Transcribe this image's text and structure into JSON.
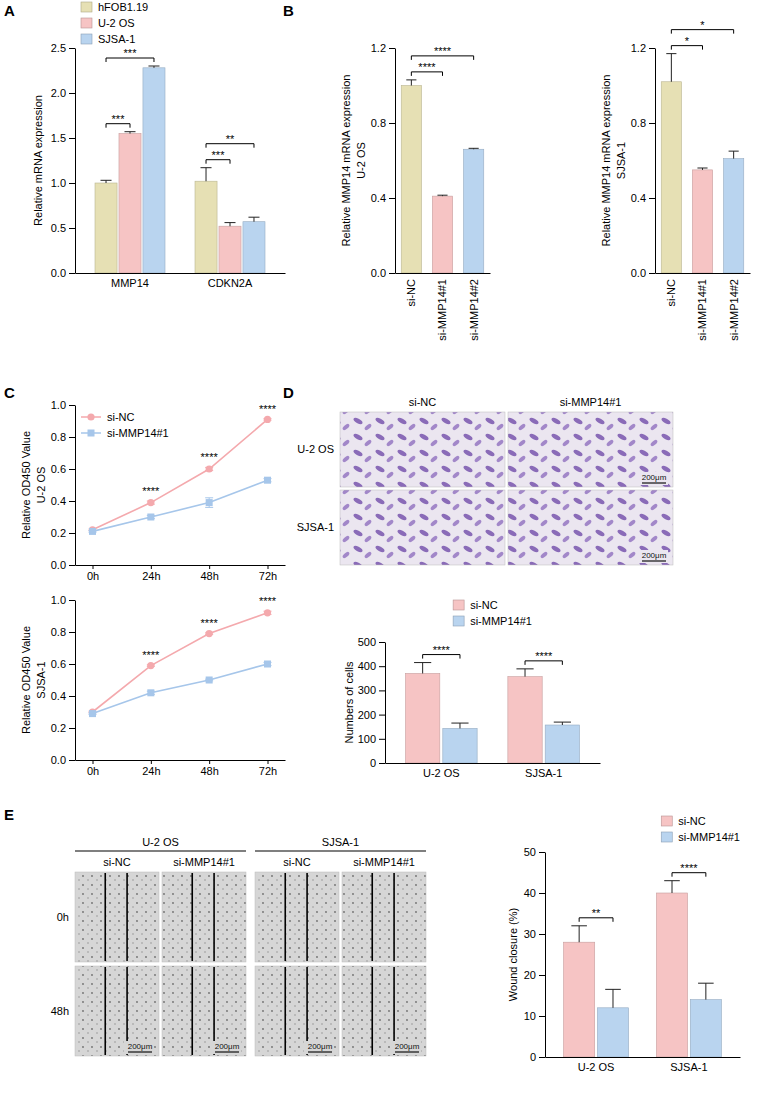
{
  "chart_data": [
    {
      "type": "bar",
      "panel": "A",
      "y_label": "Relative mRNA expression",
      "categories": [
        "MMP14",
        "CDKN2A"
      ],
      "series": [
        {
          "name": "hFOB1.19",
          "color": "#e6e0b4",
          "values": [
            1.0,
            1.02
          ],
          "errors": [
            0.03,
            0.15
          ]
        },
        {
          "name": "U-2 OS",
          "color": "#f6c4c4",
          "values": [
            1.55,
            0.52
          ],
          "errors": [
            0.02,
            0.04
          ]
        },
        {
          "name": "SJSA-1",
          "color": "#b9d4ef",
          "values": [
            2.28,
            0.57
          ],
          "errors": [
            0.02,
            0.05
          ]
        }
      ],
      "ylim": [
        0,
        2.5
      ],
      "yticks": [
        {
          "value": 0,
          "label": "0.0"
        },
        0.5,
        {
          "value": 1,
          "label": "1.0"
        },
        1.5,
        {
          "value": 2,
          "label": "2.0"
        },
        2.5
      ],
      "legend": "upper left",
      "significance": [
        {
          "category": 0,
          "pair": [
            0,
            1
          ],
          "label": "***"
        },
        {
          "category": 0,
          "pair": [
            0,
            2
          ],
          "label": "***"
        },
        {
          "category": 1,
          "pair": [
            0,
            1
          ],
          "label": "***"
        },
        {
          "category": 1,
          "pair": [
            0,
            2
          ],
          "label": "**"
        }
      ]
    },
    {
      "type": "bar",
      "panel": "B",
      "y_label": [
        "Relative MMP14 mRNA expression",
        "U-2 OS"
      ],
      "categories": [
        "si-NC",
        "si-MMP14#1",
        "si-MMP14#2"
      ],
      "values": [
        1.0,
        0.41,
        0.66
      ],
      "errors": [
        0.03,
        0.005,
        0.005
      ],
      "colors": [
        "#e6e0b4",
        "#f6c4c4",
        "#b9d4ef"
      ],
      "ylim": [
        0,
        1.2
      ],
      "yticks": [
        {
          "value": 0,
          "label": "0.0"
        },
        0.4,
        0.8,
        1.2
      ],
      "significance": [
        {
          "pair": [
            0,
            1
          ],
          "label": "****"
        },
        {
          "pair": [
            0,
            2
          ],
          "label": "****"
        }
      ]
    },
    {
      "type": "bar",
      "y_label": [
        "Relative MMP14 mRNA expression",
        "SJSA-1"
      ],
      "categories": [
        "si-NC",
        "si-MMP14#1",
        "si-MMP14#2"
      ],
      "values": [
        1.02,
        0.55,
        0.61
      ],
      "errors": [
        0.15,
        0.01,
        0.04
      ],
      "colors": [
        "#e6e0b4",
        "#f6c4c4",
        "#b9d4ef"
      ],
      "ylim": [
        0,
        1.2
      ],
      "yticks": [
        {
          "value": 0,
          "label": "0.0"
        },
        0.4,
        0.8,
        1.2
      ],
      "significance": [
        {
          "pair": [
            0,
            1
          ],
          "label": "*"
        },
        {
          "pair": [
            0,
            2
          ],
          "label": "*"
        }
      ]
    },
    {
      "type": "line",
      "panel": "C",
      "y_label": [
        "Relative OD450 Value",
        "U-2 OS"
      ],
      "categories": [
        "0h",
        "24h",
        "48h",
        "72h"
      ],
      "series": [
        {
          "name": "si-NC",
          "color": "#f4a9ad",
          "marker": "circle",
          "values": [
            0.22,
            0.39,
            0.6,
            0.91
          ],
          "errors": [
            0.005,
            0.01,
            0.01,
            0.005
          ]
        },
        {
          "name": "si-MMP14#1",
          "color": "#a6c6ea",
          "marker": "square",
          "values": [
            0.21,
            0.3,
            0.39,
            0.53
          ],
          "errors": [
            0.005,
            0.01,
            0.03,
            0.01
          ]
        }
      ],
      "ylim": [
        0,
        1.0
      ],
      "yticks": [
        {
          "value": 0,
          "label": "0.0"
        },
        0.2,
        0.4,
        0.6,
        0.8,
        {
          "value": 1,
          "label": "1.0"
        }
      ],
      "legend": "upper left",
      "significance": [
        {
          "category": 1,
          "label": "****"
        },
        {
          "category": 2,
          "label": "****"
        },
        {
          "category": 3,
          "label": "****"
        }
      ]
    },
    {
      "type": "line",
      "y_label": [
        "Relative OD450 Value",
        "SJSA-1"
      ],
      "categories": [
        "0h",
        "24h",
        "48h",
        "72h"
      ],
      "series": [
        {
          "color": "#f4a9ad",
          "marker": "circle",
          "values": [
            0.3,
            0.59,
            0.79,
            0.92
          ],
          "errors": [
            0.005,
            0.005,
            0.005,
            0.01
          ]
        },
        {
          "color": "#a6c6ea",
          "marker": "square",
          "values": [
            0.29,
            0.42,
            0.5,
            0.6
          ],
          "errors": [
            0.005,
            0.01,
            0.005,
            0.01
          ]
        }
      ],
      "ylim": [
        0,
        1.0
      ],
      "yticks": [
        {
          "value": 0,
          "label": "0.0"
        },
        0.2,
        0.4,
        0.6,
        0.8,
        {
          "value": 1,
          "label": "1.0"
        }
      ],
      "significance": [
        {
          "category": 1,
          "label": "****"
        },
        {
          "category": 2,
          "label": "****"
        },
        {
          "category": 3,
          "label": "****"
        }
      ]
    },
    {
      "type": "image",
      "panel": "D",
      "columns": [
        "si-NC",
        "si-MMP14#1"
      ],
      "rows": [
        "U-2 OS",
        "SJSA-1"
      ],
      "scale_bar": "200μm"
    },
    {
      "type": "bar",
      "y_label": "Numbers of cells",
      "categories": [
        "U-2 OS",
        "SJSA-1"
      ],
      "series": [
        {
          "name": "si-NC",
          "color": "#f6c4c4",
          "values": [
            370,
            357
          ],
          "errors": [
            45,
            32
          ]
        },
        {
          "name": "si-MMP14#1",
          "color": "#b9d4ef",
          "values": [
            143,
            157
          ],
          "errors": [
            22,
            12
          ]
        }
      ],
      "ylim": [
        0,
        500
      ],
      "yticks": [
        0,
        100,
        200,
        300,
        400,
        500
      ],
      "legend": "upper center",
      "significance": [
        {
          "category": 0,
          "pair": [
            0,
            1
          ],
          "label": "****"
        },
        {
          "category": 1,
          "pair": [
            0,
            1
          ],
          "label": "****"
        }
      ]
    },
    {
      "type": "image",
      "panel": "E",
      "groups": [
        "U-2 OS",
        "SJSA-1"
      ],
      "columns": [
        "si-NC",
        "si-MMP14#1"
      ],
      "rows": [
        "0h",
        "48h"
      ],
      "scale_bar": "200μm"
    },
    {
      "type": "bar",
      "y_label": "Wound closure (%)",
      "categories": [
        "U-2 OS",
        "SJSA-1"
      ],
      "series": [
        {
          "name": "si-NC",
          "color": "#f6c4c4",
          "values": [
            28,
            40
          ],
          "errors": [
            4,
            3
          ]
        },
        {
          "name": "si-MMP14#1",
          "color": "#b9d4ef",
          "values": [
            12,
            14
          ],
          "errors": [
            4.5,
            4
          ]
        }
      ],
      "ylim": [
        0,
        50
      ],
      "yticks": [
        0,
        10,
        20,
        30,
        40,
        50
      ],
      "legend": "upper right",
      "significance": [
        {
          "category": 0,
          "pair": [
            0,
            1
          ],
          "label": "**"
        },
        {
          "category": 1,
          "pair": [
            0,
            1
          ],
          "label": "****"
        }
      ]
    }
  ]
}
